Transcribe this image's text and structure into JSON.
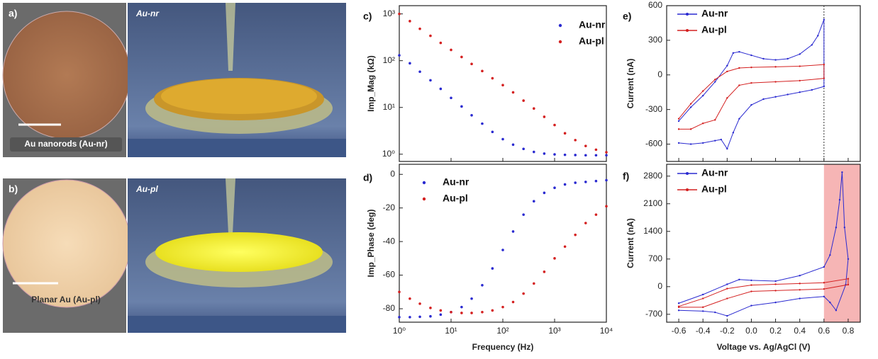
{
  "images": [
    {
      "label": "a)",
      "caption": "Au nanorods (Au-nr)",
      "render_label": "Au-nr"
    },
    {
      "label": "b)",
      "caption": "Planar Au (Au-pl)",
      "render_label": "Au-pl"
    }
  ],
  "chart_data": [
    {
      "type": "scatter",
      "panel": "c)",
      "ylabel": "Imp_Mag (kΩ)",
      "xlog": true,
      "ylog": true,
      "xlim": [
        1,
        10000
      ],
      "ylim": [
        0.7,
        1500
      ],
      "yticks": [
        {
          "value": 1,
          "label": "10⁰"
        },
        {
          "value": 10,
          "label": "10¹"
        },
        {
          "value": 100,
          "label": "10²"
        },
        {
          "value": 1000,
          "label": "10³"
        }
      ],
      "legend": "upper right",
      "x": [
        1,
        1.6,
        2.5,
        4,
        6.3,
        10,
        16,
        25,
        40,
        63,
        100,
        158,
        251,
        398,
        631,
        1000,
        1585,
        2512,
        3981,
        6310,
        10000
      ],
      "series": [
        {
          "name": "Au-nr",
          "color": "#2a2ad0",
          "values": [
            130,
            88,
            58,
            38,
            25,
            16,
            10.5,
            6.8,
            4.5,
            3.0,
            2.1,
            1.6,
            1.3,
            1.12,
            1.03,
            0.99,
            0.97,
            0.96,
            0.95,
            0.95,
            0.95
          ]
        },
        {
          "name": "Au-pl",
          "color": "#d42020",
          "values": [
            1000,
            700,
            480,
            340,
            240,
            170,
            120,
            85,
            60,
            42,
            30,
            21,
            14,
            9.5,
            6.3,
            4.2,
            2.8,
            2.0,
            1.5,
            1.25,
            1.1
          ]
        }
      ]
    },
    {
      "type": "scatter",
      "panel": "d)",
      "ylabel": "Imp_Phase (deg)",
      "xlabel": "Frequency (Hz)",
      "xlog": true,
      "xlim": [
        1,
        10000
      ],
      "ylim": [
        -88,
        6
      ],
      "xticks": [
        {
          "value": 1,
          "label": "10⁰"
        },
        {
          "value": 10,
          "label": "10¹"
        },
        {
          "value": 100,
          "label": "10²"
        },
        {
          "value": 1000,
          "label": "10³"
        },
        {
          "value": 10000,
          "label": "10⁴"
        }
      ],
      "yticks": [
        -80,
        -60,
        -40,
        -20,
        0
      ],
      "legend": "upper left",
      "x": [
        1,
        1.6,
        2.5,
        4,
        6.3,
        10,
        16,
        25,
        40,
        63,
        100,
        158,
        251,
        398,
        631,
        1000,
        1585,
        2512,
        3981,
        6310,
        10000
      ],
      "series": [
        {
          "name": "Au-nr",
          "color": "#2a2ad0",
          "values": [
            -85,
            -85,
            -84.8,
            -84.5,
            -83.5,
            -82,
            -79,
            -74,
            -66,
            -56,
            -45,
            -34,
            -24,
            -16,
            -11,
            -8,
            -6,
            -5,
            -4.5,
            -4,
            -3.5
          ]
        },
        {
          "name": "Au-pl",
          "color": "#d42020",
          "values": [
            -70,
            -74,
            -77,
            -79.5,
            -81,
            -82,
            -82.5,
            -82.5,
            -82,
            -81,
            -79,
            -76,
            -71,
            -65,
            -58,
            -50,
            -43,
            -36,
            -29,
            -24,
            -19
          ]
        }
      ]
    },
    {
      "type": "line",
      "panel": "e)",
      "ylabel": "Current (nA)",
      "xlim": [
        -0.7,
        0.9
      ],
      "ylim": [
        -750,
        600
      ],
      "yticks": [
        -600,
        -300,
        0,
        300,
        600
      ],
      "legend": "upper left",
      "vline": 0.6,
      "series": [
        {
          "name": "Au-nr",
          "color": "#2a2ad0",
          "x": [
            -0.6,
            -0.5,
            -0.4,
            -0.3,
            -0.2,
            -0.15,
            -0.1,
            0,
            0.1,
            0.2,
            0.3,
            0.4,
            0.5,
            0.55,
            0.6,
            0.6,
            0.5,
            0.4,
            0.3,
            0.2,
            0.1,
            0,
            -0.1,
            -0.15,
            -0.2,
            -0.25,
            -0.3,
            -0.4,
            -0.5,
            -0.6
          ],
          "values": [
            -400,
            -280,
            -180,
            -60,
            80,
            190,
            200,
            170,
            140,
            130,
            140,
            180,
            260,
            340,
            480,
            -100,
            -130,
            -150,
            -170,
            -190,
            -210,
            -260,
            -380,
            -500,
            -640,
            -560,
            -570,
            -590,
            -600,
            -590
          ]
        },
        {
          "name": "Au-pl",
          "color": "#d42020",
          "x": [
            -0.6,
            -0.5,
            -0.4,
            -0.3,
            -0.2,
            -0.1,
            0,
            0.2,
            0.4,
            0.6,
            0.6,
            0.4,
            0.2,
            0,
            -0.1,
            -0.2,
            -0.3,
            -0.4,
            -0.5,
            -0.6
          ],
          "values": [
            -380,
            -250,
            -140,
            -40,
            30,
            60,
            65,
            70,
            75,
            90,
            -30,
            -50,
            -60,
            -70,
            -90,
            -200,
            -390,
            -420,
            -470,
            -470
          ]
        }
      ]
    },
    {
      "type": "line",
      "panel": "f)",
      "ylabel": "Current (nA)",
      "xlabel": "Voltage vs. Ag/AgCl (V)",
      "xlim": [
        -0.7,
        0.9
      ],
      "ylim": [
        -900,
        3100
      ],
      "xticks": [
        -0.6,
        -0.4,
        -0.2,
        {
          "value": 0,
          "label": "0.0"
        },
        0.2,
        0.4,
        0.6,
        0.8
      ],
      "yticks": [
        -700,
        0,
        700,
        1400,
        2100,
        2800
      ],
      "legend": "upper left",
      "shaded_from": 0.6,
      "shade_color": "#f6b5b5",
      "series": [
        {
          "name": "Au-nr",
          "color": "#2a2ad0",
          "x": [
            -0.6,
            -0.4,
            -0.2,
            -0.1,
            0,
            0.2,
            0.4,
            0.6,
            0.65,
            0.7,
            0.73,
            0.75,
            0.77,
            0.8,
            0.78,
            0.7,
            0.65,
            0.6,
            0.4,
            0.2,
            0,
            -0.2,
            -0.3,
            -0.4,
            -0.6
          ],
          "values": [
            -420,
            -200,
            60,
            180,
            160,
            140,
            280,
            500,
            800,
            1500,
            2200,
            2900,
            1500,
            700,
            50,
            -600,
            -400,
            -250,
            -300,
            -400,
            -480,
            -740,
            -650,
            -620,
            -600
          ]
        },
        {
          "name": "Au-pl",
          "color": "#d42020",
          "x": [
            -0.6,
            -0.4,
            -0.2,
            0,
            0.2,
            0.4,
            0.6,
            0.8,
            0.8,
            0.6,
            0.4,
            0.2,
            0,
            -0.2,
            -0.4,
            -0.6
          ],
          "values": [
            -500,
            -300,
            -50,
            40,
            60,
            80,
            100,
            200,
            50,
            -60,
            -80,
            -100,
            -120,
            -300,
            -520,
            -520
          ]
        }
      ]
    }
  ]
}
